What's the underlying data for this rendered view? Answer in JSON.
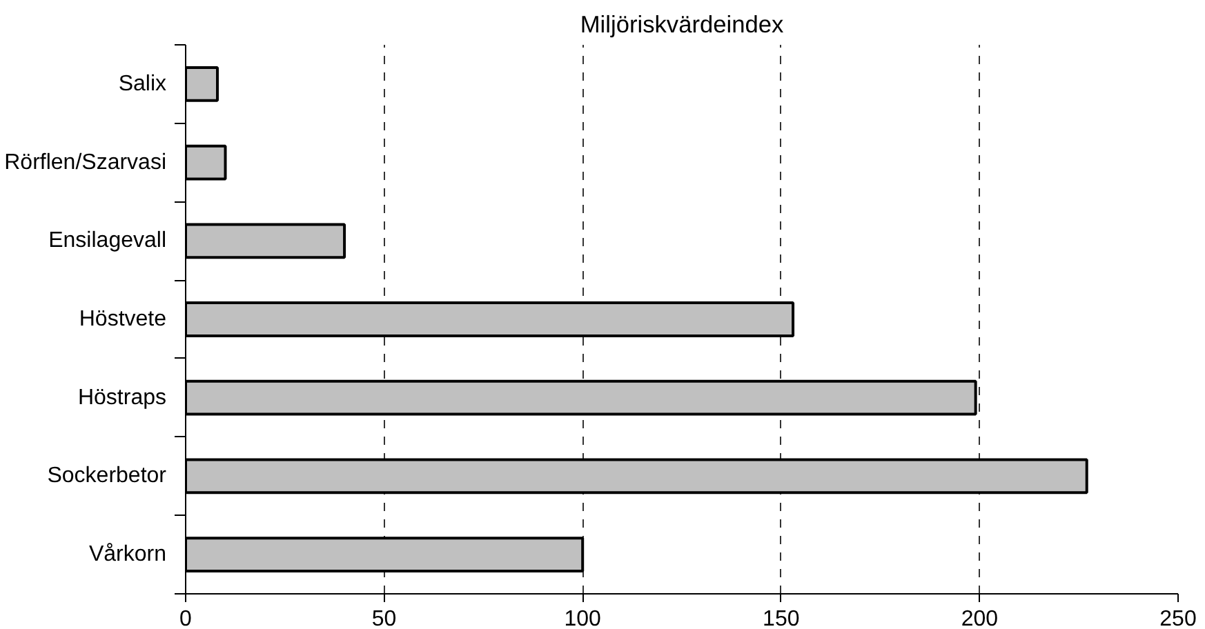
{
  "chart_data": {
    "type": "bar",
    "orientation": "horizontal",
    "title": "Miljöriskvärdeindex",
    "categories": [
      "Salix",
      "Rörflen/Szarvasi",
      "Ensilagevall",
      "Höstvete",
      "Höstraps",
      "Sockerbetor",
      "Vårkorn"
    ],
    "values": [
      8,
      10,
      40,
      153,
      199,
      227,
      100
    ],
    "color": "#c0c0c0",
    "xlim": [
      0,
      250
    ],
    "xticks": [
      0,
      50,
      100,
      150,
      200,
      250
    ],
    "grid": "x"
  }
}
